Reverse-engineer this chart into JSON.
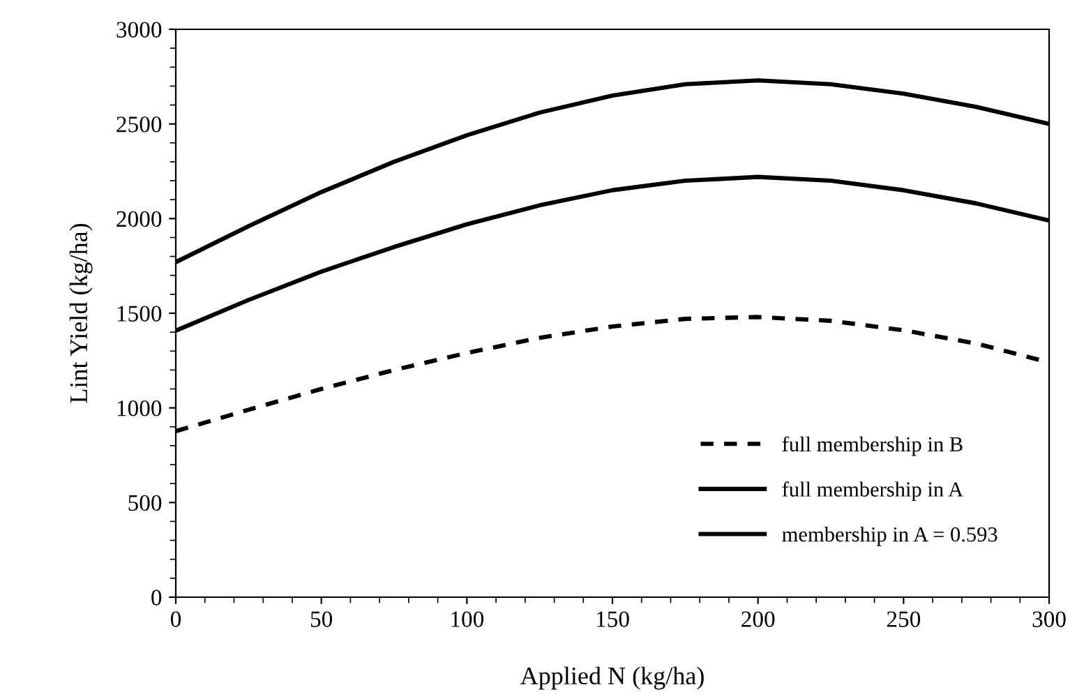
{
  "chart_data": {
    "type": "line",
    "xlabel": "Applied N (kg/ha)",
    "ylabel": "Lint Yield (kg/ha)",
    "x": [
      0,
      25,
      50,
      75,
      100,
      125,
      150,
      175,
      200,
      225,
      250,
      275,
      300
    ],
    "series": [
      {
        "name": "full membership in B",
        "color": "#000000",
        "line_style": "dashed",
        "values": [
          877,
          990,
          1100,
          1200,
          1290,
          1370,
          1430,
          1470,
          1480,
          1460,
          1410,
          1340,
          1240
        ]
      },
      {
        "name": "full membership in A",
        "color": "#000000",
        "line_style": "solid",
        "values": [
          1770,
          1960,
          2140,
          2300,
          2440,
          2560,
          2650,
          2710,
          2730,
          2710,
          2660,
          2590,
          2500
        ]
      },
      {
        "name": "membership in A = 0.593",
        "color": "#000000",
        "line_style": "solid",
        "values": [
          1408,
          1570,
          1720,
          1850,
          1970,
          2070,
          2150,
          2200,
          2220,
          2200,
          2150,
          2080,
          1990
        ]
      }
    ],
    "xlim": [
      0,
      300
    ],
    "xticks": [
      0,
      50,
      100,
      150,
      200,
      250,
      300
    ],
    "ylim": [
      0,
      3000
    ],
    "yticks": [
      0,
      500,
      1000,
      1500,
      2000,
      2500,
      3000
    ],
    "grid": false,
    "legend": "bottom right",
    "marker": "none"
  }
}
